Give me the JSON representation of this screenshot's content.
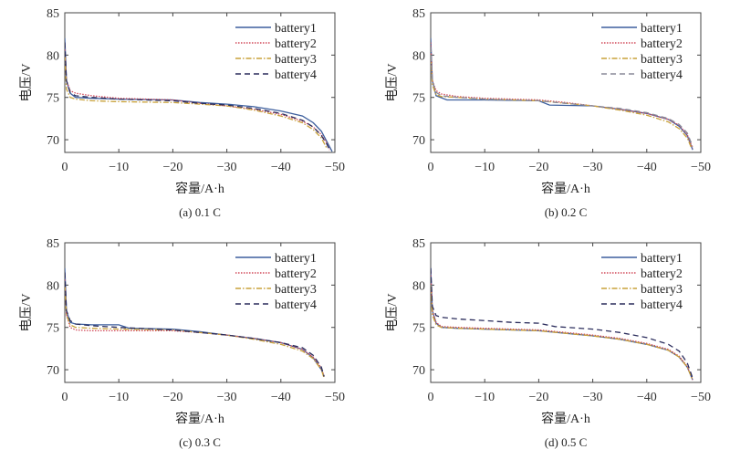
{
  "chart_data": [
    {
      "type": "line",
      "caption": "(a) 0.1 C",
      "xlabel": "容量/A·h",
      "ylabel": "电压/V",
      "xlim": [
        0,
        -50
      ],
      "ylim": [
        68.5,
        85
      ],
      "xticks": [
        0,
        -10,
        -20,
        -30,
        -40,
        -50
      ],
      "xtick_labels": [
        "0",
        "−10",
        "−20",
        "−30",
        "−40",
        "−50"
      ],
      "yticks": [
        70,
        75,
        80,
        85
      ],
      "legend": "top-right",
      "grid": false,
      "series": [
        {
          "name": "battery1",
          "color": "#3d5f9e",
          "style": "solid",
          "x": [
            0,
            -0.3,
            -1,
            -2,
            -5,
            -10,
            -20,
            -25,
            -30,
            -35,
            -40,
            -44,
            -46,
            -47.5,
            -48.5,
            -49.5
          ],
          "y": [
            82,
            77,
            75.5,
            75.0,
            74.9,
            74.8,
            74.7,
            74.4,
            74.2,
            73.9,
            73.4,
            72.8,
            72.0,
            71.0,
            69.8,
            68.6
          ]
        },
        {
          "name": "battery2",
          "color": "#d24a5a",
          "style": "dotted",
          "x": [
            0,
            -0.3,
            -1,
            -2,
            -5,
            -10,
            -20,
            -25,
            -30,
            -35,
            -40,
            -44,
            -46,
            -47.5,
            -48.5,
            -49
          ],
          "y": [
            81,
            77,
            75.8,
            75.5,
            75.2,
            74.9,
            74.7,
            74.3,
            74.0,
            73.6,
            73.0,
            72.2,
            71.5,
            70.6,
            69.6,
            68.8
          ]
        },
        {
          "name": "battery3",
          "color": "#c9a23a",
          "style": "dashdot",
          "x": [
            0,
            -0.3,
            -1,
            -2,
            -5,
            -10,
            -20,
            -25,
            -30,
            -35,
            -40,
            -44,
            -46,
            -47.5,
            -48.5
          ],
          "y": [
            80,
            76,
            75.0,
            74.8,
            74.6,
            74.5,
            74.4,
            74.2,
            74.0,
            73.5,
            72.8,
            72.0,
            71.2,
            70.2,
            69.0
          ]
        },
        {
          "name": "battery4",
          "color": "#2b2d5c",
          "style": "dashed",
          "x": [
            0,
            -0.3,
            -1,
            -2,
            -5,
            -10,
            -20,
            -25,
            -30,
            -35,
            -40,
            -44,
            -46,
            -47.5,
            -48.5,
            -49
          ],
          "y": [
            81.5,
            77,
            75.6,
            75.2,
            75.0,
            74.8,
            74.6,
            74.3,
            74.1,
            73.7,
            73.1,
            72.3,
            71.5,
            70.5,
            69.5,
            68.8
          ]
        }
      ]
    },
    {
      "type": "line",
      "caption": "(b) 0.2 C",
      "xlabel": "容量/A·h",
      "ylabel": "电压/V",
      "xlim": [
        0,
        -50
      ],
      "ylim": [
        68.5,
        85
      ],
      "xticks": [
        0,
        -10,
        -20,
        -30,
        -40,
        -50
      ],
      "xtick_labels": [
        "0",
        "−10",
        "−20",
        "−30",
        "−40",
        "−50"
      ],
      "yticks": [
        70,
        75,
        80,
        85
      ],
      "legend": "top-right",
      "grid": false,
      "series": [
        {
          "name": "battery1",
          "color": "#3d5f9e",
          "style": "solid",
          "x": [
            0,
            -0.3,
            -1,
            -3,
            -5,
            -10,
            -20,
            -22,
            -30,
            -35,
            -40,
            -44,
            -46,
            -47.5,
            -48.5
          ],
          "y": [
            82,
            77,
            75.2,
            74.7,
            74.7,
            74.7,
            74.6,
            74.1,
            74.0,
            73.6,
            73.1,
            72.4,
            71.6,
            70.5,
            68.8
          ]
        },
        {
          "name": "battery2",
          "color": "#d24a5a",
          "style": "dotted",
          "x": [
            0,
            -0.3,
            -1,
            -2,
            -5,
            -10,
            -20,
            -25,
            -30,
            -35,
            -40,
            -44,
            -46,
            -47.5,
            -48.5
          ],
          "y": [
            81.5,
            77,
            75.8,
            75.4,
            75.1,
            74.9,
            74.7,
            74.4,
            74.0,
            73.6,
            73.1,
            72.4,
            71.7,
            70.6,
            69.0
          ]
        },
        {
          "name": "battery3",
          "color": "#c9a23a",
          "style": "dashdot",
          "x": [
            0,
            -0.3,
            -1,
            -2,
            -5,
            -10,
            -20,
            -25,
            -30,
            -35,
            -40,
            -44,
            -46,
            -47.5,
            -48.3
          ],
          "y": [
            80,
            76.5,
            75.3,
            75.1,
            75.0,
            74.8,
            74.6,
            74.3,
            74.0,
            73.5,
            72.9,
            72.1,
            71.3,
            70.2,
            69.0
          ]
        },
        {
          "name": "battery4",
          "color": "#8a8a98",
          "style": "dashed",
          "x": [
            0,
            -0.3,
            -1,
            -2,
            -5,
            -10,
            -20,
            -25,
            -30,
            -35,
            -40,
            -44,
            -46,
            -47.5,
            -48.5
          ],
          "y": [
            81,
            77,
            75.6,
            75.2,
            75.0,
            74.8,
            74.6,
            74.3,
            74.0,
            73.7,
            73.2,
            72.5,
            71.8,
            70.8,
            69.2
          ]
        }
      ]
    },
    {
      "type": "line",
      "caption": "(c) 0.3 C",
      "xlabel": "容量/A·h",
      "ylabel": "电压/V",
      "xlim": [
        0,
        -50
      ],
      "ylim": [
        68.5,
        85
      ],
      "xticks": [
        0,
        -10,
        -20,
        -30,
        -40,
        -50
      ],
      "xtick_labels": [
        "0",
        "−10",
        "−20",
        "−30",
        "−40",
        "−50"
      ],
      "yticks": [
        70,
        75,
        80,
        85
      ],
      "legend": "top-right",
      "grid": false,
      "series": [
        {
          "name": "battery1",
          "color": "#3d5f9e",
          "style": "solid",
          "x": [
            0,
            -0.3,
            -1,
            -2,
            -5,
            -10,
            -12,
            -20,
            -25,
            -30,
            -35,
            -40,
            -44,
            -46,
            -47.5,
            -48
          ],
          "y": [
            82,
            77,
            75.6,
            75.4,
            75.3,
            75.3,
            74.9,
            74.8,
            74.5,
            74.1,
            73.7,
            73.2,
            72.4,
            71.4,
            70.0,
            69.2
          ]
        },
        {
          "name": "battery2",
          "color": "#d24a5a",
          "style": "dotted",
          "x": [
            0,
            -0.3,
            -1,
            -2,
            -5,
            -10,
            -20,
            -25,
            -30,
            -35,
            -40,
            -44,
            -46,
            -47.5,
            -48
          ],
          "y": [
            81,
            76.5,
            75.0,
            74.7,
            74.6,
            74.6,
            74.6,
            74.4,
            74.1,
            73.7,
            73.2,
            72.4,
            71.5,
            70.2,
            69.2
          ]
        },
        {
          "name": "battery3",
          "color": "#c9a23a",
          "style": "dashdot",
          "x": [
            0,
            -0.3,
            -1,
            -2,
            -5,
            -10,
            -20,
            -25,
            -30,
            -35,
            -40,
            -44,
            -46,
            -47.5,
            -48
          ],
          "y": [
            80,
            76.5,
            75.3,
            75.0,
            74.9,
            74.8,
            74.7,
            74.4,
            74.1,
            73.6,
            73.0,
            72.2,
            71.3,
            70.0,
            69.0
          ]
        },
        {
          "name": "battery4",
          "color": "#2b2d5c",
          "style": "dashed",
          "x": [
            0,
            -0.3,
            -1,
            -2,
            -5,
            -10,
            -20,
            -25,
            -30,
            -35,
            -40,
            -44,
            -46,
            -47.5,
            -48
          ],
          "y": [
            81.5,
            77,
            75.8,
            75.4,
            75.2,
            75.0,
            74.7,
            74.4,
            74.1,
            73.7,
            73.2,
            72.6,
            71.7,
            70.3,
            69.2
          ]
        }
      ]
    },
    {
      "type": "line",
      "caption": "(d) 0.5 C",
      "xlabel": "容量/A·h",
      "ylabel": "电压/V",
      "xlim": [
        0,
        -50
      ],
      "ylim": [
        68.5,
        85
      ],
      "xticks": [
        0,
        -10,
        -20,
        -30,
        -40,
        -50
      ],
      "xtick_labels": [
        "0",
        "−10",
        "−20",
        "−30",
        "−40",
        "−50"
      ],
      "yticks": [
        70,
        75,
        80,
        85
      ],
      "legend": "top-right",
      "grid": false,
      "series": [
        {
          "name": "battery1",
          "color": "#3d5f9e",
          "style": "solid",
          "x": [
            0,
            -0.3,
            -1,
            -2,
            -5,
            -10,
            -20,
            -25,
            -30,
            -35,
            -40,
            -44,
            -46,
            -47.5,
            -48.5
          ],
          "y": [
            82,
            77,
            75.5,
            75.0,
            74.9,
            74.8,
            74.6,
            74.3,
            74.0,
            73.6,
            73.0,
            72.3,
            71.5,
            70.3,
            68.8
          ]
        },
        {
          "name": "battery2",
          "color": "#d24a5a",
          "style": "dotted",
          "x": [
            0,
            -0.3,
            -1,
            -2,
            -5,
            -10,
            -20,
            -25,
            -30,
            -35,
            -40,
            -44,
            -46,
            -47.5,
            -48.5
          ],
          "y": [
            81.5,
            77,
            75.6,
            75.1,
            75.0,
            74.9,
            74.7,
            74.4,
            74.1,
            73.7,
            73.1,
            72.4,
            71.6,
            70.4,
            68.8
          ]
        },
        {
          "name": "battery3",
          "color": "#c9a23a",
          "style": "dashdot",
          "x": [
            0,
            -0.3,
            -1,
            -2,
            -5,
            -10,
            -20,
            -25,
            -30,
            -35,
            -40,
            -44,
            -46,
            -47.5,
            -48.5
          ],
          "y": [
            80,
            76.5,
            75.3,
            75.0,
            74.9,
            74.8,
            74.6,
            74.3,
            74.0,
            73.6,
            73.0,
            72.3,
            71.5,
            70.3,
            68.8
          ]
        },
        {
          "name": "battery4",
          "color": "#2b2d5c",
          "style": "dashed",
          "x": [
            0,
            -0.3,
            -1,
            -2,
            -5,
            -10,
            -15,
            -20,
            -23,
            -30,
            -35,
            -40,
            -44,
            -46,
            -47.5,
            -48.5
          ],
          "y": [
            82,
            77.5,
            76.4,
            76.2,
            76.0,
            75.8,
            75.6,
            75.5,
            75.1,
            74.8,
            74.4,
            73.8,
            73.0,
            72.2,
            70.8,
            69.0
          ]
        }
      ]
    }
  ]
}
